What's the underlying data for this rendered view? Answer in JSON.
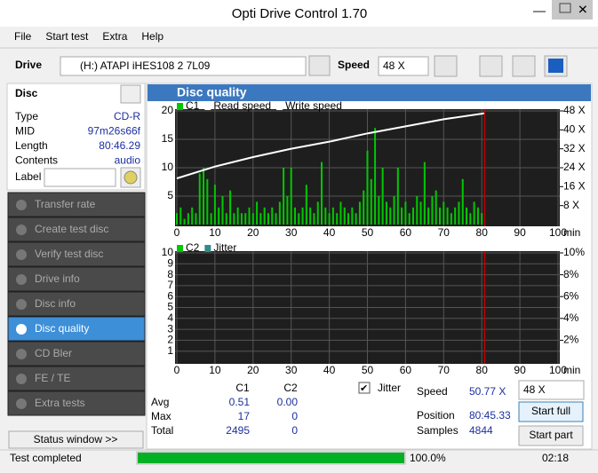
{
  "window": {
    "title": "Opti Drive Control 1.70",
    "menu": [
      "File",
      "Start test",
      "Extra",
      "Help"
    ]
  },
  "toolbar": {
    "drive_label": "Drive",
    "drive": "(H:)   ATAPI iHES108   2 7L09",
    "speed_label": "Speed",
    "speed": "48 X"
  },
  "disc": {
    "heading": "Disc",
    "rows": [
      [
        "Type",
        "CD-R"
      ],
      [
        "MID",
        "97m26s66f"
      ],
      [
        "Length",
        "80:46.29"
      ],
      [
        "Contents",
        "audio"
      ]
    ],
    "label_field": "Label"
  },
  "sidebar": {
    "items": [
      "Transfer rate",
      "Create test disc",
      "Verify test disc",
      "Drive info",
      "Disc info",
      "Disc quality",
      "CD Bler",
      "FE / TE",
      "Extra tests"
    ],
    "selected": 5,
    "status_button": "Status window >>"
  },
  "panel": {
    "title": "Disc quality"
  },
  "chart_data": [
    {
      "type": "bar",
      "x_unit": "min",
      "xlim": [
        0,
        100
      ],
      "xticks": [
        0,
        10,
        20,
        30,
        40,
        50,
        60,
        70,
        80,
        90,
        100
      ],
      "ylim": [
        0,
        20
      ],
      "yticks": [
        5,
        10,
        15,
        20
      ],
      "y2lim": [
        0,
        48
      ],
      "y2ticks": [
        {
          "value": 8,
          "label": "8 X"
        },
        {
          "value": 16,
          "label": "16 X"
        },
        {
          "value": 24,
          "label": "24 X"
        },
        {
          "value": 32,
          "label": "32 X"
        },
        {
          "value": 40,
          "label": "40 X"
        },
        {
          "value": 48,
          "label": "48 X"
        }
      ],
      "position_marker": 80.77,
      "series": [
        {
          "name": "C1",
          "color": "#00c800",
          "x": [
            0,
            1,
            2,
            3,
            4,
            5,
            6,
            7,
            8,
            9,
            10,
            11,
            12,
            13,
            14,
            15,
            16,
            17,
            18,
            19,
            20,
            21,
            22,
            23,
            24,
            25,
            26,
            27,
            28,
            29,
            30,
            31,
            32,
            33,
            34,
            35,
            36,
            37,
            38,
            39,
            40,
            41,
            42,
            43,
            44,
            45,
            46,
            47,
            48,
            49,
            50,
            51,
            52,
            53,
            54,
            55,
            56,
            57,
            58,
            59,
            60,
            61,
            62,
            63,
            64,
            65,
            66,
            67,
            68,
            69,
            70,
            71,
            72,
            73,
            74,
            75,
            76,
            77,
            78,
            79,
            80
          ],
          "values": [
            2,
            3,
            1,
            2,
            3,
            2,
            9,
            10,
            8,
            2,
            7,
            3,
            5,
            2,
            6,
            2,
            3,
            2,
            2,
            3,
            2,
            4,
            2,
            3,
            2,
            3,
            2,
            4,
            10,
            5,
            10,
            3,
            2,
            3,
            7,
            3,
            2,
            4,
            11,
            3,
            2,
            3,
            2,
            4,
            3,
            2,
            3,
            2,
            4,
            6,
            13,
            8,
            17,
            5,
            10,
            4,
            3,
            5,
            10,
            3,
            4,
            2,
            3,
            5,
            4,
            11,
            3,
            5,
            6,
            3,
            4,
            3,
            2,
            3,
            4,
            8,
            3,
            2,
            4,
            3,
            2
          ]
        },
        {
          "name": "Read speed",
          "color": "#ffffff",
          "axis": "y2",
          "x": [
            0,
            10,
            20,
            30,
            40,
            50,
            60,
            70,
            80.77
          ],
          "values": [
            19.5,
            24.5,
            28.5,
            32,
            35,
            38.5,
            41.5,
            44.5,
            47
          ]
        },
        {
          "name": "Write speed",
          "color": "#ffffff",
          "axis": "y2",
          "x": [],
          "values": []
        }
      ]
    },
    {
      "type": "bar",
      "x_unit": "min",
      "xlim": [
        0,
        100
      ],
      "xticks": [
        0,
        10,
        20,
        30,
        40,
        50,
        60,
        70,
        80,
        90,
        100
      ],
      "ylim": [
        0,
        10
      ],
      "yticks": [
        1,
        2,
        3,
        4,
        5,
        6,
        7,
        8,
        9,
        10
      ],
      "y2lim": [
        0,
        10
      ],
      "y2ticks": [
        {
          "value": 2,
          "label": "2%"
        },
        {
          "value": 4,
          "label": "4%"
        },
        {
          "value": 6,
          "label": "6%"
        },
        {
          "value": 8,
          "label": "8%"
        },
        {
          "value": 10,
          "label": "10%"
        }
      ],
      "position_marker": 80.77,
      "series": [
        {
          "name": "C2",
          "color": "#00c800",
          "x": [],
          "values": []
        },
        {
          "name": "Jitter",
          "color": "#2e8b8b",
          "axis": "y2",
          "x": [],
          "values": []
        }
      ]
    }
  ],
  "stats": {
    "columns": [
      "C1",
      "C2"
    ],
    "rows": [
      [
        "Avg",
        "0.51",
        "0.00"
      ],
      [
        "Max",
        "17",
        "0"
      ],
      [
        "Total",
        "2495",
        "0"
      ]
    ],
    "jitter": "Jitter",
    "speed_label": "Speed",
    "speed": "50.77 X",
    "speed_select": "48 X",
    "position_label": "Position",
    "position": "80:45.33",
    "samples_label": "Samples",
    "samples": "4844",
    "start_full": "Start full",
    "start_part": "Start part"
  },
  "status": {
    "text": "Test completed",
    "progress": "100.0%",
    "time": "02:18"
  }
}
